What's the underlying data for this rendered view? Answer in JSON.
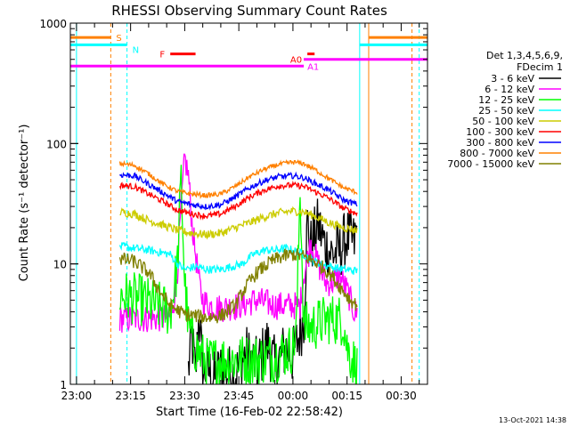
{
  "chart_data": {
    "type": "line",
    "title": "RHESSI Observing Summary Count Rates",
    "xlabel": "Start Time (16-Feb-02 22:58:42)",
    "ylabel": "Count Rate (s⁻¹ detector⁻¹)",
    "y_scale": "log",
    "ylim": [
      1,
      1000
    ],
    "xlim_minutes": [
      -1.7,
      97.3
    ],
    "x_ticks": [
      {
        "label": "23:00",
        "min": 0
      },
      {
        "label": "23:15",
        "min": 15
      },
      {
        "label": "23:30",
        "min": 30
      },
      {
        "label": "23:45",
        "min": 45
      },
      {
        "label": "00:00",
        "min": 60
      },
      {
        "label": "00:15",
        "min": 75
      },
      {
        "label": "00:30",
        "min": 90
      }
    ],
    "y_ticks": [
      {
        "label": "1",
        "value": 1
      },
      {
        "label": "10",
        "value": 10
      },
      {
        "label": "100",
        "value": 100
      },
      {
        "label": "1000",
        "value": 1000
      }
    ],
    "legend_header": [
      "Det 1,3,4,5,6,9,",
      "FDecim 1"
    ],
    "legend_placement": "right",
    "series": [
      {
        "name": "3 - 6 keV",
        "color": "#000000",
        "points": [
          [
            31,
            1.3
          ],
          [
            32,
            2.5
          ],
          [
            33,
            1.2
          ],
          [
            34,
            4
          ],
          [
            35,
            1.2
          ],
          [
            36,
            1.4
          ],
          [
            38,
            1.1
          ],
          [
            40,
            1.3
          ],
          [
            44,
            1.2
          ],
          [
            47,
            1.8
          ],
          [
            50,
            1.4
          ],
          [
            53,
            2.2
          ],
          [
            55,
            1.4
          ],
          [
            58,
            2
          ],
          [
            60,
            1.7
          ],
          [
            63,
            3.5
          ],
          [
            64,
            22
          ],
          [
            65,
            14
          ],
          [
            67,
            21
          ],
          [
            69,
            14
          ],
          [
            71,
            12
          ],
          [
            73,
            13
          ],
          [
            75,
            17
          ],
          [
            77,
            15
          ],
          [
            78,
            20
          ]
        ]
      },
      {
        "name": "6 - 12 keV",
        "color": "#ff00ff",
        "points": [
          [
            12,
            3.5
          ],
          [
            20,
            3.5
          ],
          [
            26,
            3.6
          ],
          [
            27,
            5
          ],
          [
            28,
            9
          ],
          [
            29,
            30
          ],
          [
            30,
            75
          ],
          [
            31,
            55
          ],
          [
            32,
            22
          ],
          [
            33,
            12
          ],
          [
            34,
            7
          ],
          [
            35,
            5
          ],
          [
            37,
            4.5
          ],
          [
            40,
            4.3
          ],
          [
            45,
            4.5
          ],
          [
            50,
            5
          ],
          [
            55,
            4.5
          ],
          [
            60,
            4.5
          ],
          [
            62,
            4.5
          ],
          [
            63,
            8
          ],
          [
            65,
            15
          ],
          [
            67,
            10
          ],
          [
            69,
            7
          ],
          [
            71,
            7
          ],
          [
            73,
            8
          ],
          [
            75,
            6
          ],
          [
            77,
            4
          ],
          [
            78,
            3.8
          ]
        ]
      },
      {
        "name": "12 - 25 keV",
        "color": "#00ff00",
        "points": [
          [
            12,
            5.5
          ],
          [
            18,
            5
          ],
          [
            22,
            4.5
          ],
          [
            26,
            4
          ],
          [
            28,
            10
          ],
          [
            29,
            50
          ],
          [
            30,
            7
          ],
          [
            31,
            3
          ],
          [
            33,
            2
          ],
          [
            36,
            1.5
          ],
          [
            40,
            1.6
          ],
          [
            45,
            1.6
          ],
          [
            50,
            1.6
          ],
          [
            55,
            1.7
          ],
          [
            60,
            2
          ],
          [
            61,
            3
          ],
          [
            62,
            45
          ],
          [
            63,
            3
          ],
          [
            65,
            3
          ],
          [
            70,
            3.5
          ],
          [
            74,
            3.4
          ],
          [
            75,
            2
          ],
          [
            77,
            1.5
          ],
          [
            78,
            1.3
          ]
        ]
      },
      {
        "name": "25 - 50 keV",
        "color": "#00ffff",
        "points": [
          [
            12,
            14
          ],
          [
            20,
            13
          ],
          [
            26,
            12
          ],
          [
            28,
            10
          ],
          [
            30,
            9
          ],
          [
            33,
            9.5
          ],
          [
            36,
            9
          ],
          [
            40,
            9
          ],
          [
            43,
            9.5
          ],
          [
            46,
            10
          ],
          [
            49,
            12
          ],
          [
            52,
            13
          ],
          [
            55,
            13
          ],
          [
            58,
            13.5
          ],
          [
            60,
            13
          ],
          [
            63,
            12
          ],
          [
            66,
            10.5
          ],
          [
            70,
            9.5
          ],
          [
            74,
            9
          ],
          [
            78,
            8.7
          ]
        ]
      },
      {
        "name": "50 - 100 keV",
        "color": "#cccc00",
        "points": [
          [
            12,
            27
          ],
          [
            16,
            26
          ],
          [
            20,
            23
          ],
          [
            24,
            21
          ],
          [
            28,
            19
          ],
          [
            32,
            18
          ],
          [
            36,
            17.5
          ],
          [
            40,
            18
          ],
          [
            44,
            20
          ],
          [
            48,
            22
          ],
          [
            52,
            24.5
          ],
          [
            56,
            26.5
          ],
          [
            60,
            27.5
          ],
          [
            63,
            27
          ],
          [
            66,
            25
          ],
          [
            70,
            22
          ],
          [
            74,
            20
          ],
          [
            78,
            19
          ]
        ]
      },
      {
        "name": "100 - 300 keV",
        "color": "#ff0000",
        "points": [
          [
            12,
            45
          ],
          [
            16,
            44
          ],
          [
            20,
            38
          ],
          [
            24,
            33
          ],
          [
            28,
            28
          ],
          [
            32,
            26
          ],
          [
            36,
            25
          ],
          [
            40,
            26
          ],
          [
            44,
            30
          ],
          [
            48,
            36
          ],
          [
            52,
            41
          ],
          [
            56,
            44.5
          ],
          [
            60,
            45
          ],
          [
            63,
            44
          ],
          [
            66,
            40
          ],
          [
            70,
            35
          ],
          [
            74,
            29
          ],
          [
            78,
            26
          ]
        ]
      },
      {
        "name": "300 - 800 keV",
        "color": "#0000ff",
        "points": [
          [
            12,
            55
          ],
          [
            16,
            54
          ],
          [
            20,
            46
          ],
          [
            24,
            39
          ],
          [
            28,
            33
          ],
          [
            32,
            31
          ],
          [
            36,
            30
          ],
          [
            40,
            31
          ],
          [
            44,
            36
          ],
          [
            48,
            43
          ],
          [
            52,
            49
          ],
          [
            56,
            53
          ],
          [
            60,
            54
          ],
          [
            63,
            52
          ],
          [
            66,
            47
          ],
          [
            70,
            41
          ],
          [
            74,
            34
          ],
          [
            78,
            31
          ]
        ]
      },
      {
        "name": "800 - 7000 keV",
        "color": "#ff8000",
        "points": [
          [
            12,
            68
          ],
          [
            16,
            66
          ],
          [
            20,
            56
          ],
          [
            24,
            46
          ],
          [
            28,
            40
          ],
          [
            32,
            38
          ],
          [
            36,
            37
          ],
          [
            40,
            38
          ],
          [
            44,
            44
          ],
          [
            48,
            53
          ],
          [
            52,
            61
          ],
          [
            56,
            67
          ],
          [
            60,
            70
          ],
          [
            63,
            68
          ],
          [
            66,
            61
          ],
          [
            70,
            51
          ],
          [
            74,
            43
          ],
          [
            78,
            39
          ]
        ]
      },
      {
        "name": "7000 - 15000 keV",
        "color": "#808000",
        "points": [
          [
            12,
            11
          ],
          [
            16,
            10.5
          ],
          [
            20,
            8.5
          ],
          [
            23,
            6
          ],
          [
            26,
            4.5
          ],
          [
            30,
            3.8
          ],
          [
            36,
            3.6
          ],
          [
            40,
            3.7
          ],
          [
            44,
            4.5
          ],
          [
            47,
            6.5
          ],
          [
            50,
            8.5
          ],
          [
            54,
            10.5
          ],
          [
            57,
            11.5
          ],
          [
            60,
            12
          ],
          [
            63,
            11.5
          ],
          [
            66,
            10.5
          ],
          [
            70,
            8.5
          ],
          [
            73,
            6.5
          ],
          [
            76,
            5
          ],
          [
            78,
            4.5
          ]
        ]
      }
    ],
    "flag_lines": [
      {
        "label": "S",
        "color": "#ff8000",
        "min_start": -1.7,
        "min_end": 9.5,
        "value": 760
      },
      {
        "label": "N",
        "color": "#00ffff",
        "min_start": -1.7,
        "min_end": 14,
        "value": 660
      },
      {
        "label": "F",
        "color": "#ff0000",
        "min_start": 26,
        "min_end": 33,
        "value": 555
      },
      {
        "label": "A0",
        "color": "#ff0000",
        "min_start": 64,
        "min_end": 66,
        "value": 555
      },
      {
        "label": "A0",
        "color": "#ff00ff",
        "min_start": 63,
        "min_end": 97.3,
        "value": 500
      },
      {
        "label": "A1",
        "color": "#ff00ff",
        "min_start": -1.7,
        "min_end": 63,
        "value": 440
      }
    ],
    "orange_flag_right": {
      "color": "#ff8000",
      "min_start": 81,
      "min_end": 97.3,
      "value": 760
    },
    "cyan_flag_right": {
      "color": "#00ffff",
      "min_start": 78.5,
      "min_end": 97.3,
      "value": 660
    },
    "vertical_markers": [
      {
        "color": "#00ffff",
        "min": 0,
        "style": "solid"
      },
      {
        "color": "#ff8000",
        "min": 9.5,
        "style": "dashed"
      },
      {
        "color": "#00ffff",
        "min": 14,
        "style": "dashed"
      },
      {
        "color": "#00ffff",
        "min": 78.5,
        "style": "solid"
      },
      {
        "color": "#ff8000",
        "min": 81,
        "style": "solid"
      },
      {
        "color": "#ff8000",
        "min": 93,
        "style": "dashed"
      },
      {
        "color": "#00ffff",
        "min": 95,
        "style": "dashed"
      }
    ],
    "footer_timestamp": "13-Oct-2021 14:38"
  }
}
